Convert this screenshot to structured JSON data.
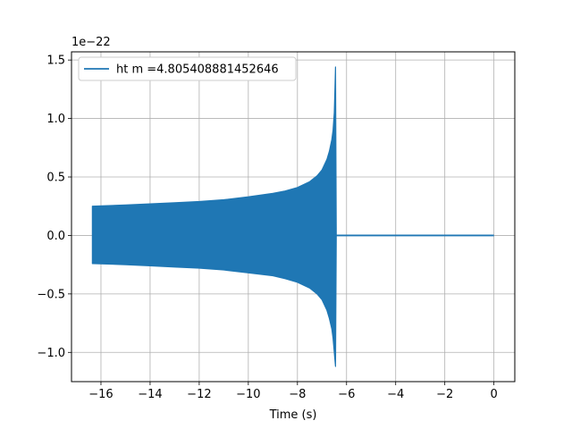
{
  "chart_data": {
    "type": "line",
    "title": "",
    "xlabel": "Time (s)",
    "ylabel": "",
    "y_offset_label": "1e−22",
    "xlim": [
      -17.2,
      0.85
    ],
    "ylim": [
      -1.25,
      1.57
    ],
    "x_ticks": [
      -16,
      -14,
      -12,
      -10,
      -8,
      -6,
      -4,
      -2,
      0
    ],
    "x_tick_labels": [
      "−16",
      "−14",
      "−12",
      "−10",
      "−8",
      "−6",
      "−4",
      "−2",
      "0"
    ],
    "y_ticks": [
      -1.0,
      -0.5,
      0.0,
      0.5,
      1.0,
      1.5
    ],
    "y_tick_labels": [
      "−1.0",
      "−0.5",
      "0.0",
      "0.5",
      "1.0",
      "1.5"
    ],
    "grid": true,
    "legend_position": "top-left",
    "series": [
      {
        "name": "ht m =4.805408881452646",
        "color": "#1f77b4",
        "envelope": {
          "x": [
            -16.35,
            -15,
            -14,
            -13,
            -12,
            -11,
            -10,
            -9,
            -8.5,
            -8,
            -7.5,
            -7.2,
            -7.0,
            -6.8,
            -6.7,
            -6.6,
            -6.55,
            -6.5,
            -6.48,
            -6.45,
            -6.43,
            -6.42
          ],
          "upper": [
            0.25,
            0.26,
            0.27,
            0.28,
            0.29,
            0.305,
            0.33,
            0.36,
            0.38,
            0.41,
            0.46,
            0.51,
            0.56,
            0.65,
            0.72,
            0.82,
            0.9,
            1.05,
            1.2,
            1.44,
            0.5,
            0.02
          ],
          "lower": [
            -0.24,
            -0.25,
            -0.26,
            -0.27,
            -0.28,
            -0.295,
            -0.32,
            -0.345,
            -0.37,
            -0.4,
            -0.45,
            -0.5,
            -0.55,
            -0.64,
            -0.71,
            -0.8,
            -0.88,
            -1.0,
            -1.05,
            -1.12,
            -0.4,
            -0.02
          ]
        },
        "tail": {
          "x": [
            -6.42,
            0.0
          ],
          "y": [
            0.0,
            0.0
          ]
        }
      }
    ]
  }
}
